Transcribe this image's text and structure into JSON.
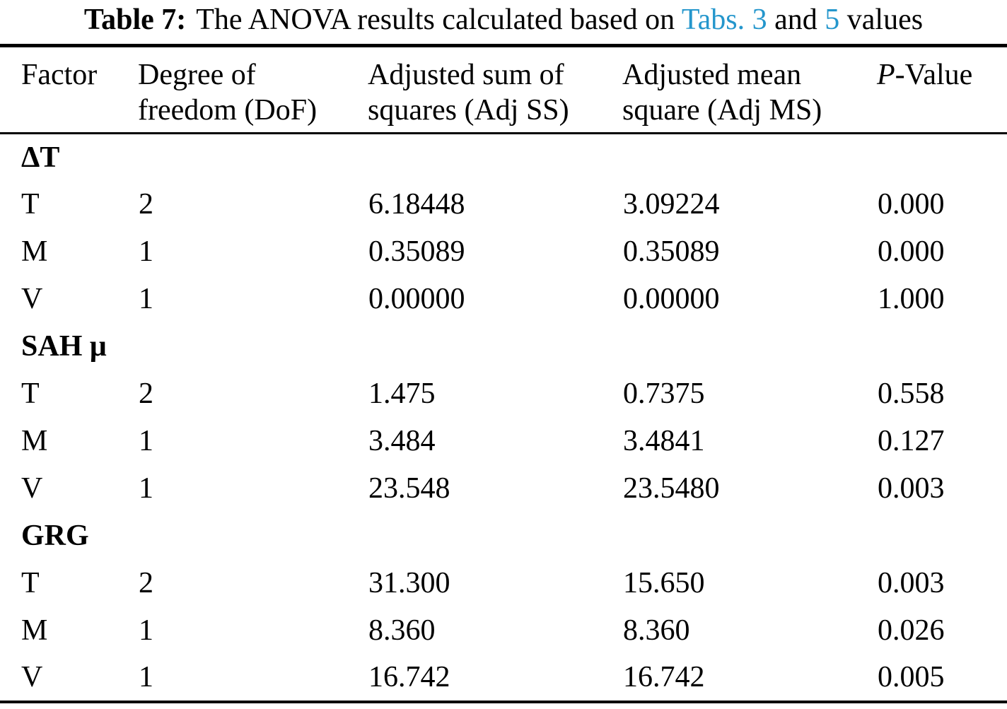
{
  "caption": {
    "label": "Table 7:",
    "prefix": "The ANOVA results calculated based on",
    "link_1": "Tabs. 3",
    "conjunction": "and",
    "link_2": "5",
    "suffix": "values"
  },
  "colors": {
    "text": "#000000",
    "background": "#ffffff",
    "link": "#2496cc"
  },
  "table": {
    "headers": {
      "factor": "Factor",
      "dof_line1": "Degree of",
      "dof_line2": "freedom (DoF)",
      "adj_ss_line1": "Adjusted sum of",
      "adj_ss_line2": "squares (Adj SS)",
      "adj_ms_line1": "Adjusted mean",
      "adj_ms_line2": "square (Adj MS)",
      "p_italic": "P",
      "p_rest": "-Value"
    },
    "sections": [
      {
        "name": "ΔT",
        "rows": [
          [
            "T",
            "2",
            "6.18448",
            "3.09224",
            "0.000"
          ],
          [
            "M",
            "1",
            "0.35089",
            "0.35089",
            "0.000"
          ],
          [
            "V",
            "1",
            "0.00000",
            "0.00000",
            "1.000"
          ]
        ]
      },
      {
        "name": "SAH μ",
        "rows": [
          [
            "T",
            "2",
            "1.475",
            "0.7375",
            "0.558"
          ],
          [
            "M",
            "1",
            "3.484",
            "3.4841",
            "0.127"
          ],
          [
            "V",
            "1",
            "23.548",
            "23.5480",
            "0.003"
          ]
        ]
      },
      {
        "name": "GRG",
        "rows": [
          [
            "T",
            "2",
            "31.300",
            "15.650",
            "0.003"
          ],
          [
            "M",
            "1",
            "8.360",
            "8.360",
            "0.026"
          ],
          [
            "V",
            "1",
            "16.742",
            "16.742",
            "0.005"
          ]
        ]
      }
    ]
  }
}
